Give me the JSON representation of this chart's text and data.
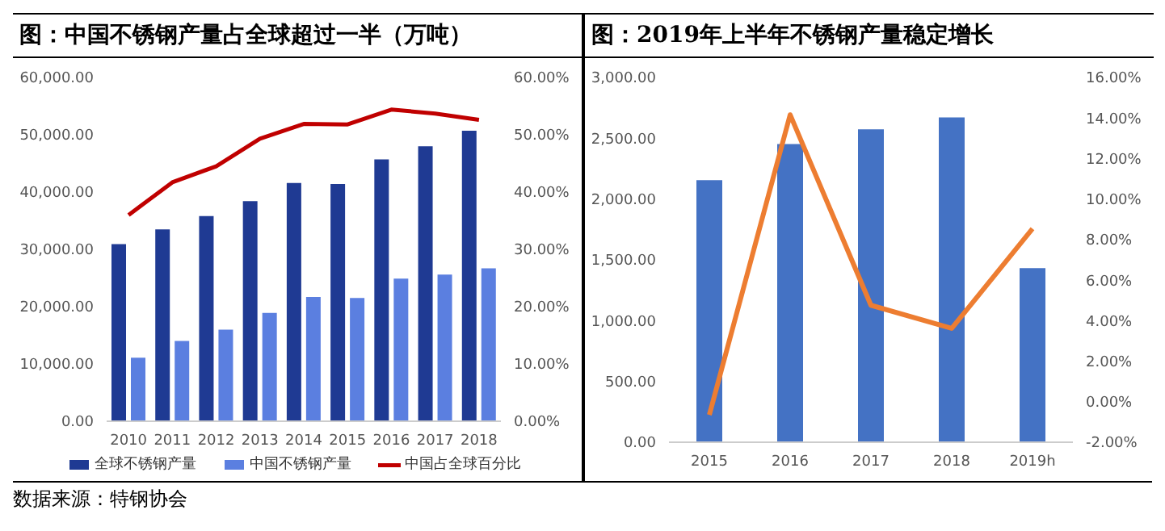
{
  "chart_data": [
    {
      "type": "bar",
      "title": "图：中国不锈钢产量占全球超过一半（万吨）",
      "categories": [
        "2010",
        "2011",
        "2012",
        "2013",
        "2014",
        "2015",
        "2016",
        "2017",
        "2018"
      ],
      "series": [
        {
          "name": "全球不锈钢产量",
          "color": "#1f3a93",
          "values": [
            30900,
            33500,
            35800,
            38400,
            41600,
            41400,
            45700,
            48000,
            50700
          ]
        },
        {
          "name": "中国不锈钢产量",
          "color": "#5b7fe0",
          "values": [
            11100,
            14000,
            16000,
            18900,
            21700,
            21500,
            24900,
            25600,
            26700
          ]
        },
        {
          "name": "中国占全球百分比",
          "type": "line",
          "axis": "y2",
          "color": "#c00000",
          "values": [
            36.0,
            41.7,
            44.5,
            49.3,
            51.9,
            51.8,
            54.4,
            53.7,
            52.6
          ]
        }
      ],
      "ylim": [
        0,
        60000
      ],
      "yticks": [
        {
          "value": 0,
          "label": "0.00"
        },
        {
          "value": 10000,
          "label": "10,000.00"
        },
        {
          "value": 20000,
          "label": "20,000.00"
        },
        {
          "value": 30000,
          "label": "30,000.00"
        },
        {
          "value": 40000,
          "label": "40,000.00"
        },
        {
          "value": 50000,
          "label": "50,000.00"
        },
        {
          "value": 60000,
          "label": "60,000.00"
        }
      ],
      "y2lim": [
        0,
        60
      ],
      "y2ticks": [
        {
          "value": 0,
          "label": "0.00%"
        },
        {
          "value": 10,
          "label": "10.00%"
        },
        {
          "value": 20,
          "label": "20.00%"
        },
        {
          "value": 30,
          "label": "30.00%"
        },
        {
          "value": 40,
          "label": "40.00%"
        },
        {
          "value": 50,
          "label": "50.00%"
        },
        {
          "value": 60,
          "label": "60.00%"
        }
      ],
      "legend": "bottom",
      "marker": "none",
      "annotations": [
        "数据来源：特钢协会"
      ]
    },
    {
      "type": "bar",
      "title": "图：2019年上半年不锈钢产量稳定增长",
      "categories": [
        "2015",
        "2016",
        "2017",
        "2018",
        "2019h"
      ],
      "series": [
        {
          "color": "#4472c4",
          "values": [
            2155,
            2452,
            2573,
            2672,
            1432
          ]
        },
        {
          "type": "line",
          "axis": "y2",
          "color": "#ed7d31",
          "values": [
            -0.65,
            14.16,
            4.76,
            3.62,
            8.54
          ]
        }
      ],
      "ylim": [
        0,
        3000
      ],
      "yticks": [
        {
          "value": 0,
          "label": "0.00"
        },
        {
          "value": 500,
          "label": "500.00"
        },
        {
          "value": 1000,
          "label": "1,000.00"
        },
        {
          "value": 1500,
          "label": "1,500.00"
        },
        {
          "value": 2000,
          "label": "2,000.00"
        },
        {
          "value": 2500,
          "label": "2,500.00"
        },
        {
          "value": 3000,
          "label": "3,000.00"
        }
      ],
      "y2lim": [
        -2,
        16
      ],
      "y2ticks": [
        {
          "value": -2,
          "label": "-2.00%"
        },
        {
          "value": 0,
          "label": "0.00%"
        },
        {
          "value": 2,
          "label": "2.00%"
        },
        {
          "value": 4,
          "label": "4.00%"
        },
        {
          "value": 6,
          "label": "6.00%"
        },
        {
          "value": 8,
          "label": "8.00%"
        },
        {
          "value": 10,
          "label": "10.00%"
        },
        {
          "value": 12,
          "label": "12.00%"
        },
        {
          "value": 14,
          "label": "14.00%"
        },
        {
          "value": 16,
          "label": "16.00%"
        }
      ],
      "legend": false,
      "marker": "none"
    }
  ]
}
